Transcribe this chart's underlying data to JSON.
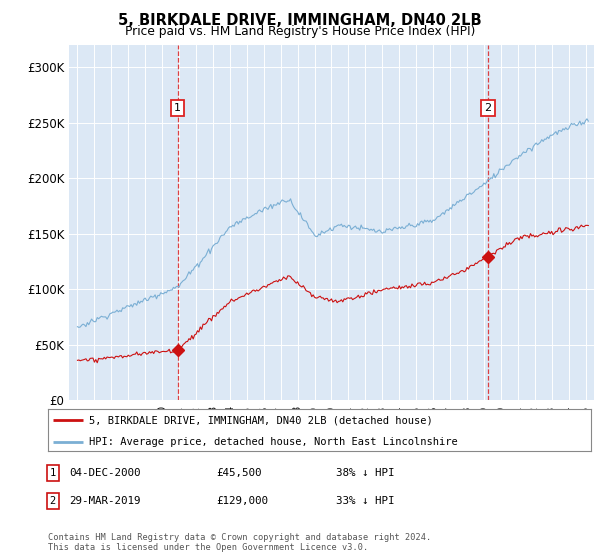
{
  "title1": "5, BIRKDALE DRIVE, IMMINGHAM, DN40 2LB",
  "title2": "Price paid vs. HM Land Registry's House Price Index (HPI)",
  "red_label": "5, BIRKDALE DRIVE, IMMINGHAM, DN40 2LB (detached house)",
  "blue_label": "HPI: Average price, detached house, North East Lincolnshire",
  "sale1_date": 2000.92,
  "sale1_price": 45500,
  "sale2_date": 2019.24,
  "sale2_price": 129000,
  "ann1_date": "04-DEC-2000",
  "ann1_price": "£45,500",
  "ann1_hpi": "38% ↓ HPI",
  "ann2_date": "29-MAR-2019",
  "ann2_price": "£129,000",
  "ann2_hpi": "33% ↓ HPI",
  "footer1": "Contains HM Land Registry data © Crown copyright and database right 2024.",
  "footer2": "This data is licensed under the Open Government Licence v3.0.",
  "ylim_min": 0,
  "ylim_max": 320000,
  "xlim_min": 1994.5,
  "xlim_max": 2025.5,
  "plot_bg_color": "#dce8f5",
  "blue_color": "#7bafd4",
  "red_color": "#cc1111",
  "grid_color": "#ffffff",
  "vline_color": "#dd2222"
}
